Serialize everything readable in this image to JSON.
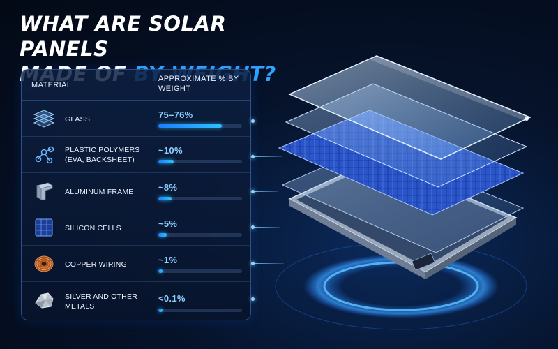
{
  "title": {
    "line1": "What are solar panels",
    "line2_prefix": "made of ",
    "line2_highlight": "by weight?"
  },
  "table": {
    "header_material": "MATERIAL",
    "header_weight": "APPROXIMATE % BY WEIGHT",
    "rows": [
      {
        "name": "GLASS",
        "percent": "75–76%",
        "fill": 0.755,
        "icon": "glass-layers-icon"
      },
      {
        "name": "PLASTIC POLYMERS (EVA, BACKSHEET)",
        "percent": "~10%",
        "fill": 0.18,
        "icon": "polymer-molecule-icon"
      },
      {
        "name": "ALUMINUM FRAME",
        "percent": "~8%",
        "fill": 0.16,
        "icon": "aluminum-frame-icon"
      },
      {
        "name": "SILICON CELLS",
        "percent": "~5%",
        "fill": 0.1,
        "icon": "silicon-cell-icon"
      },
      {
        "name": "COPPER WIRING",
        "percent": "~1%",
        "fill": 0.04,
        "icon": "copper-coil-icon"
      },
      {
        "name": "SILVER AND OTHER METALS",
        "percent": "<0.1%",
        "fill": 0.01,
        "icon": "silver-metal-icon"
      }
    ]
  },
  "colors": {
    "accent": "#2ea3ff",
    "bar": "#1b7dff",
    "background": "#06132b"
  },
  "illustration": "exploded-solar-panel-layers"
}
